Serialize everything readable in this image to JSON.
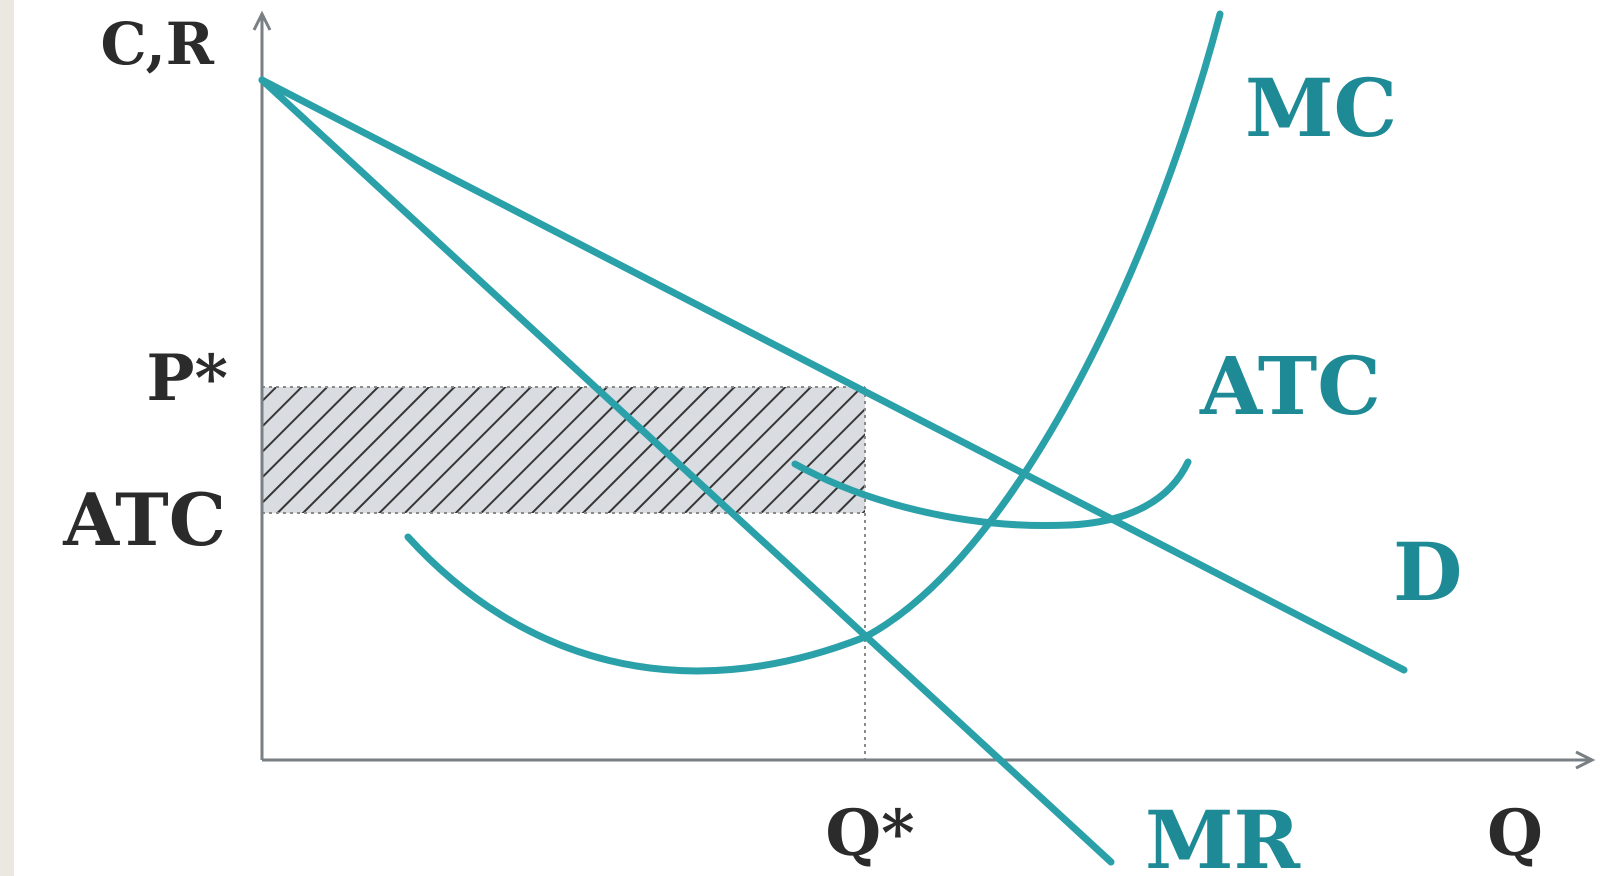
{
  "diagram": {
    "colors": {
      "curve": "#2aa0a9",
      "curve_label": "#1d8a95",
      "axis": "#7a7f83",
      "profit_fill": "#d7dadf",
      "hatch": "#2b2b2b",
      "background": "#ffffff"
    },
    "axes": {
      "y_label": "C,R",
      "x_label": "Q"
    },
    "ticks": {
      "price": "P*",
      "atc": "ATC",
      "quantity": "Q*"
    },
    "curves": {
      "mc": "MC",
      "atc": "ATC",
      "demand": "D",
      "mr": "MR"
    }
  }
}
